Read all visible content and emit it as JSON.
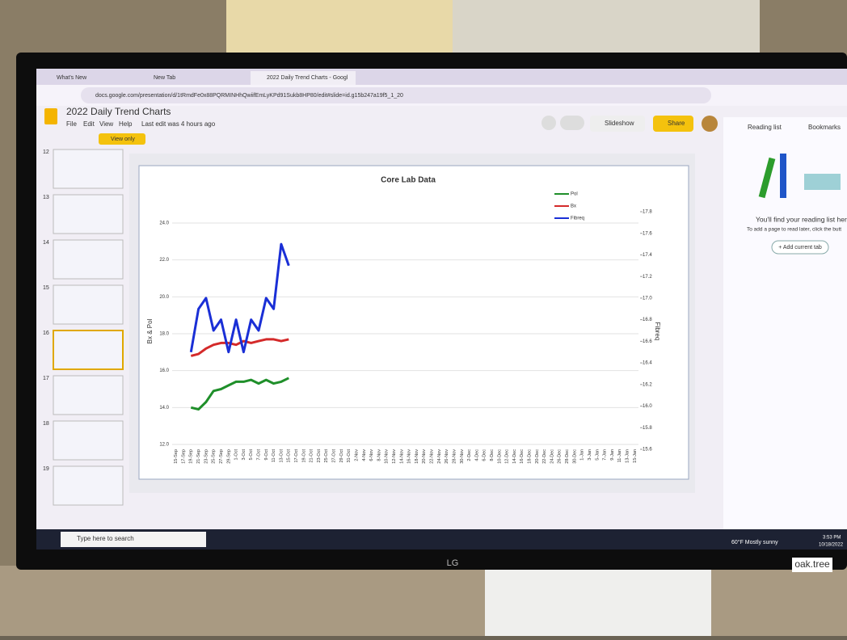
{
  "browser": {
    "tabs": [
      "What's New",
      "New Tab",
      "2022 Daily Trend Charts - Googl"
    ],
    "url": "docs.google.com/presentation/d/1tRmdFe0x88PQRMINHhQwiifEmLyKPd91Sukb8HP80/edit#slide=id.g15b247a19f5_1_20"
  },
  "doc": {
    "title": "2022 Daily Trend Charts",
    "menus": [
      "File",
      "Edit",
      "View",
      "Help"
    ],
    "last_edit": "Last edit was 4 hours ago",
    "view_only": "View only",
    "slideshow": "Slideshow",
    "share": "Share"
  },
  "slides": {
    "numbers": [
      "12",
      "13",
      "14",
      "15",
      "16",
      "17",
      "18",
      "19"
    ]
  },
  "reading_list": {
    "tabs": [
      "Reading list",
      "Bookmarks"
    ],
    "heading": "You'll find your reading list here",
    "hint": "To add a page to read later, click the butt",
    "button": "+ Add current tab"
  },
  "taskbar": {
    "search": "Type here to search",
    "weather": "60°F Mostly sunny",
    "time": "3:53 PM",
    "date": "10/18/2022"
  },
  "monitor": {
    "brand": "LG"
  },
  "sticker": "oak.tree",
  "chart_data": {
    "type": "line",
    "title": "Core Lab Data",
    "y_label": "Bx & Pol",
    "y2_label": "Fibreq",
    "categories": [
      "15-Sep",
      "17-Sep",
      "19-Sep",
      "21-Sep",
      "23-Sep",
      "25-Sep",
      "27-Sep",
      "29-Sep",
      "1-Oct",
      "3-Oct",
      "5-Oct",
      "7-Oct",
      "9-Oct",
      "11-Oct",
      "13-Oct",
      "15-Oct",
      "17-Oct",
      "19-Oct",
      "21-Oct",
      "23-Oct",
      "25-Oct",
      "27-Oct",
      "29-Oct",
      "31-Oct",
      "2-Nov",
      "4-Nov",
      "6-Nov",
      "8-Nov",
      "10-Nov",
      "12-Nov",
      "14-Nov",
      "16-Nov",
      "18-Nov",
      "20-Nov",
      "22-Nov",
      "24-Nov",
      "26-Nov",
      "28-Nov",
      "30-Nov",
      "2-Dec",
      "4-Dec",
      "6-Dec",
      "8-Dec",
      "10-Dec",
      "12-Dec",
      "14-Dec",
      "16-Dec",
      "18-Dec",
      "20-Dec",
      "22-Dec",
      "24-Dec",
      "26-Dec",
      "28-Dec",
      "30-Dec",
      "1-Jan",
      "3-Jan",
      "5-Jan",
      "7-Jan",
      "9-Jan",
      "11-Jan",
      "13-Jan",
      "15-Jan"
    ],
    "series": [
      {
        "name": "Pol",
        "color": "#1f8f2a",
        "values": [
          null,
          null,
          14.0,
          13.9,
          14.3,
          14.9,
          15.0,
          15.2,
          15.4,
          15.4,
          15.5,
          15.3,
          15.5,
          15.3,
          15.4,
          15.6,
          null,
          null,
          null,
          null,
          null,
          null,
          null,
          null,
          null,
          null,
          null,
          null,
          null,
          null,
          null,
          null,
          null,
          null,
          null,
          null,
          null,
          null,
          null,
          null,
          null,
          null,
          null,
          null,
          null,
          null,
          null,
          null,
          null,
          null,
          null,
          null,
          null,
          null,
          null,
          null,
          null,
          null,
          null,
          null,
          null,
          null
        ]
      },
      {
        "name": "Bx",
        "color": "#d42a2a",
        "values": [
          null,
          null,
          16.8,
          16.9,
          17.2,
          17.4,
          17.5,
          17.5,
          17.4,
          17.6,
          17.5,
          17.6,
          17.7,
          17.7,
          17.6,
          17.7,
          null,
          null,
          null,
          null,
          null,
          null,
          null,
          null,
          null,
          null,
          null,
          null,
          null,
          null,
          null,
          null,
          null,
          null,
          null,
          null,
          null,
          null,
          null,
          null,
          null,
          null,
          null,
          null,
          null,
          null,
          null,
          null,
          null,
          null,
          null,
          null,
          null,
          null,
          null,
          null,
          null,
          null,
          null,
          null,
          null,
          null
        ]
      },
      {
        "name": "Fibreq",
        "color": "#1a2fd6",
        "axis": "y2",
        "values": [
          null,
          null,
          16.5,
          16.9,
          17.0,
          16.7,
          16.8,
          16.5,
          16.8,
          16.5,
          16.8,
          16.7,
          17.0,
          16.9,
          17.5,
          17.3,
          null,
          null,
          null,
          null,
          null,
          null,
          null,
          null,
          null,
          null,
          null,
          null,
          null,
          null,
          null,
          null,
          null,
          null,
          null,
          null,
          null,
          null,
          null,
          null,
          null,
          null,
          null,
          null,
          null,
          null,
          null,
          null,
          null,
          null,
          null,
          null,
          null,
          null,
          null,
          null,
          null,
          null,
          null,
          null,
          null,
          null
        ]
      }
    ],
    "ylim": [
      12,
      24
    ],
    "yticks": [
      {
        "value": 12,
        "label": "12.0"
      },
      {
        "value": 14,
        "label": "14.0"
      },
      {
        "value": 16,
        "label": "16.0"
      },
      {
        "value": 18,
        "label": "18.0"
      },
      {
        "value": 20,
        "label": "20.0"
      },
      {
        "value": 22,
        "label": "22.0"
      },
      {
        "value": 24,
        "label": "24.0"
      }
    ],
    "y2lim": [
      15.6,
      17.8
    ],
    "y2ticks": [
      15.6,
      15.8,
      {
        "value": 16,
        "label": "16.0"
      },
      16.2,
      16.4,
      16.6,
      16.8,
      {
        "value": 17,
        "label": "17.0"
      },
      17.2,
      17.4,
      17.6,
      17.8
    ],
    "grid": true
  }
}
